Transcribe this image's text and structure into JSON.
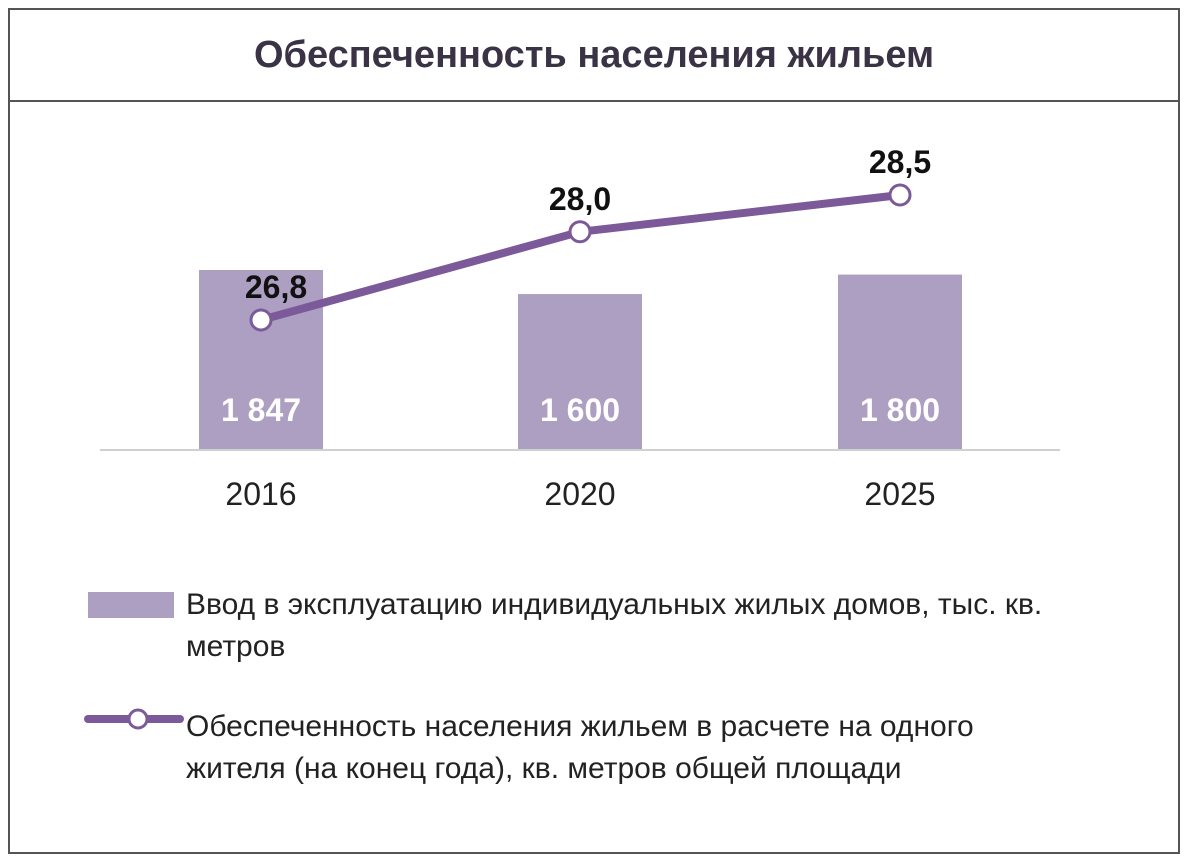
{
  "chart_data": {
    "type": "bar+line",
    "title": "Обеспеченность населения жильем",
    "categories": [
      "2016",
      "2020",
      "2025"
    ],
    "series": [
      {
        "name": "Ввод в эксплуатацию индивидуальных жилых домов, тыс. кв. метров",
        "type": "bar",
        "values": [
          1847,
          1600,
          1800
        ],
        "labels": [
          "1 847",
          "1 600",
          "1 800"
        ],
        "color": "#ad9fc2"
      },
      {
        "name": "Обеспеченность населения жильем в расчете на одного жителя (на конец года), кв. метров общей площади",
        "type": "line",
        "values": [
          26.8,
          28.0,
          28.5
        ],
        "labels": [
          "26,8",
          "28,0",
          "28,5"
        ],
        "color": "#7c5a9a"
      }
    ],
    "legend_position": "bottom",
    "grid": false
  }
}
